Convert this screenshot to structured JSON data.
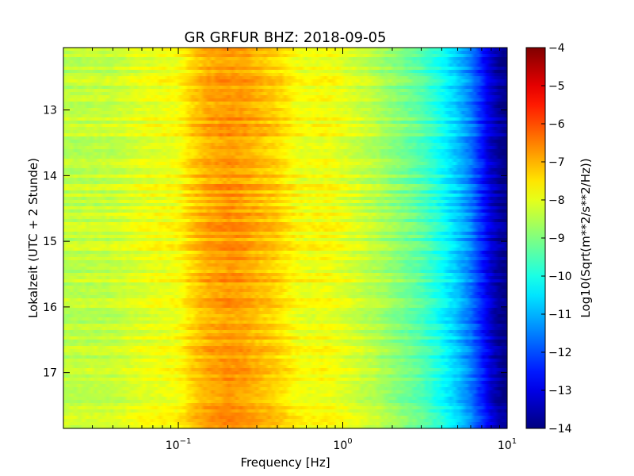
{
  "chart_data": {
    "type": "heatmap",
    "title": "GR GRFUR BHZ: 2018-09-05",
    "xlabel": "Frequency [Hz]",
    "ylabel": "Lokalzeit (UTC + 2 Stunde)",
    "x_scale": "log",
    "xlim": [
      0.02,
      10
    ],
    "ylim": [
      12.05,
      17.85
    ],
    "y_inverted": true,
    "x_major_ticks": [
      {
        "value": 0.1,
        "base": "10",
        "exponent": "−1"
      },
      {
        "value": 1,
        "base": "10",
        "exponent": "0"
      },
      {
        "value": 10,
        "base": "10",
        "exponent": "1"
      }
    ],
    "y_ticks": [
      {
        "value": 13,
        "label": "13"
      },
      {
        "value": 14,
        "label": "14"
      },
      {
        "value": 15,
        "label": "15"
      },
      {
        "value": 16,
        "label": "16"
      },
      {
        "value": 17,
        "label": "17"
      }
    ],
    "colorbar": {
      "label": "Log10(Sqrt(m**2/s**2/Hz))",
      "colormap": "jet",
      "range": [
        -14,
        -4
      ],
      "ticks": [
        {
          "value": -4,
          "label": "−4"
        },
        {
          "value": -5,
          "label": "−5"
        },
        {
          "value": -6,
          "label": "−6"
        },
        {
          "value": -7,
          "label": "−7"
        },
        {
          "value": -8,
          "label": "−8"
        },
        {
          "value": -9,
          "label": "−9"
        },
        {
          "value": -10,
          "label": "−10"
        },
        {
          "value": -11,
          "label": "−11"
        },
        {
          "value": -12,
          "label": "−12"
        },
        {
          "value": -13,
          "label": "−13"
        },
        {
          "value": -14,
          "label": "−14"
        }
      ]
    },
    "spectrum_profile": {
      "frequency_hz": [
        0.02,
        0.04,
        0.06,
        0.08,
        0.1,
        0.12,
        0.15,
        0.2,
        0.25,
        0.3,
        0.4,
        0.5,
        0.6,
        0.8,
        1.0,
        1.5,
        2.0,
        3.0,
        4.0,
        5.0,
        6.0,
        7.0,
        8.0,
        9.0,
        10.0
      ],
      "level": [
        -8.4,
        -8.3,
        -8.0,
        -7.9,
        -7.8,
        -7.3,
        -6.9,
        -6.7,
        -6.8,
        -7.0,
        -7.3,
        -7.7,
        -7.9,
        -7.8,
        -8.0,
        -8.4,
        -8.8,
        -9.4,
        -10.1,
        -10.8,
        -11.5,
        -12.4,
        -13.2,
        -13.7,
        -13.9
      ]
    },
    "time_range_hours": [
      12.05,
      17.85
    ]
  }
}
